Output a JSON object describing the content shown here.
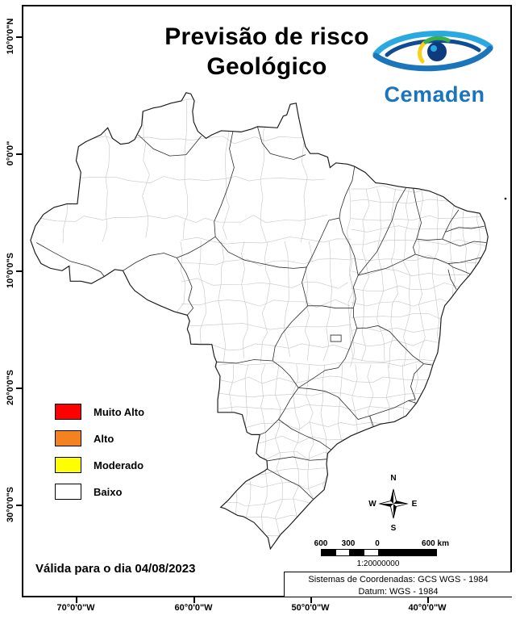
{
  "title": {
    "line1": "Previsão de risco",
    "line2": "Geológico"
  },
  "logo": {
    "wordmark": "Cemaden"
  },
  "axes": {
    "lat_labels": [
      "10°0'0\"N",
      "0°0'0\"",
      "10°0'0\"S",
      "20°0'0\"S",
      "30°0'0\"S"
    ],
    "lon_labels": [
      "70°0'0\"W",
      "60°0'0\"W",
      "50°0'0\"W",
      "40°0'0\"W"
    ]
  },
  "legend": {
    "items": [
      {
        "label": "Muito Alto",
        "color": "#FF0000"
      },
      {
        "label": "Alto",
        "color": "#F58220"
      },
      {
        "label": "Moderado",
        "color": "#FFFF00"
      },
      {
        "label": "Baixo",
        "color": "#FFFFFF"
      }
    ]
  },
  "validity": "Válida para o dia 04/08/2023",
  "compass": {
    "n": "N",
    "s": "S",
    "e": "E",
    "w": "W"
  },
  "scalebar": {
    "labels": [
      "600",
      "300",
      "0",
      "600 km"
    ],
    "ratio": "1:20000000"
  },
  "footer": {
    "coord_system": "Sistemas de Coordenadas: GCS WGS - 1984",
    "datum": "Datum: WGS - 1984"
  },
  "map": {
    "accent_blue": "#1b75bb"
  }
}
